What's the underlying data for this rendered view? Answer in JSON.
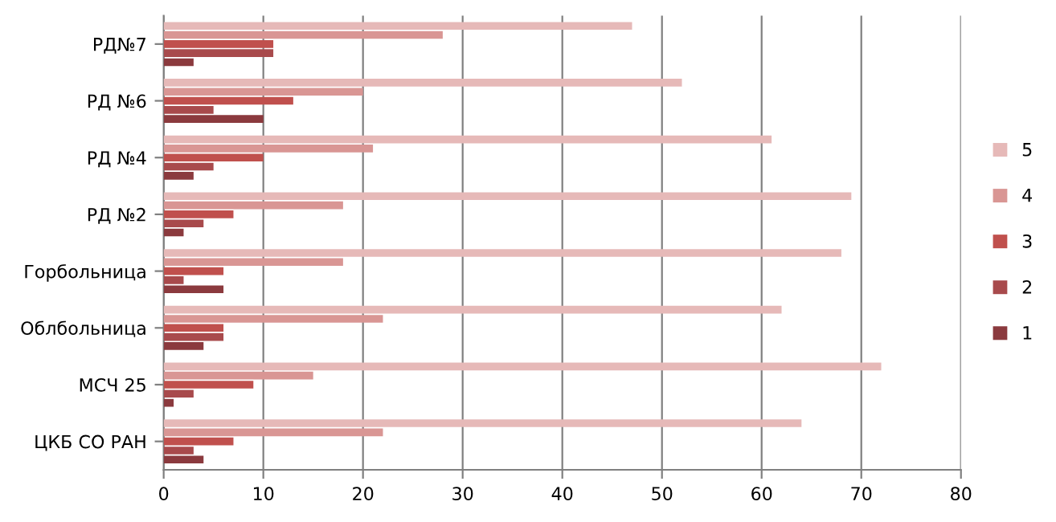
{
  "chart_data": {
    "type": "bar",
    "orientation": "horizontal",
    "categories": [
      "РД№7",
      "РД №6",
      "РД №4",
      "РД №2",
      "Горбольница",
      "Облбольница",
      "МСЧ 25",
      "ЦКБ СО РАН"
    ],
    "series": [
      {
        "name": "1",
        "color": "#8b3a3e",
        "values": [
          3,
          10,
          3,
          2,
          6,
          4,
          1,
          4
        ]
      },
      {
        "name": "2",
        "color": "#a84a4c",
        "values": [
          11,
          5,
          5,
          4,
          2,
          6,
          3,
          3
        ]
      },
      {
        "name": "3",
        "color": "#c0504d",
        "values": [
          11,
          13,
          10,
          7,
          6,
          6,
          9,
          7
        ]
      },
      {
        "name": "4",
        "color": "#d99694",
        "values": [
          28,
          20,
          21,
          18,
          18,
          22,
          15,
          22
        ]
      },
      {
        "name": "5",
        "color": "#e6b9b8",
        "values": [
          47,
          52,
          61,
          69,
          68,
          62,
          72,
          64
        ]
      }
    ],
    "xlim": [
      0,
      80
    ],
    "xticks": [
      0,
      10,
      20,
      30,
      40,
      50,
      60,
      70,
      80
    ],
    "grid": "x",
    "legend": "right"
  }
}
